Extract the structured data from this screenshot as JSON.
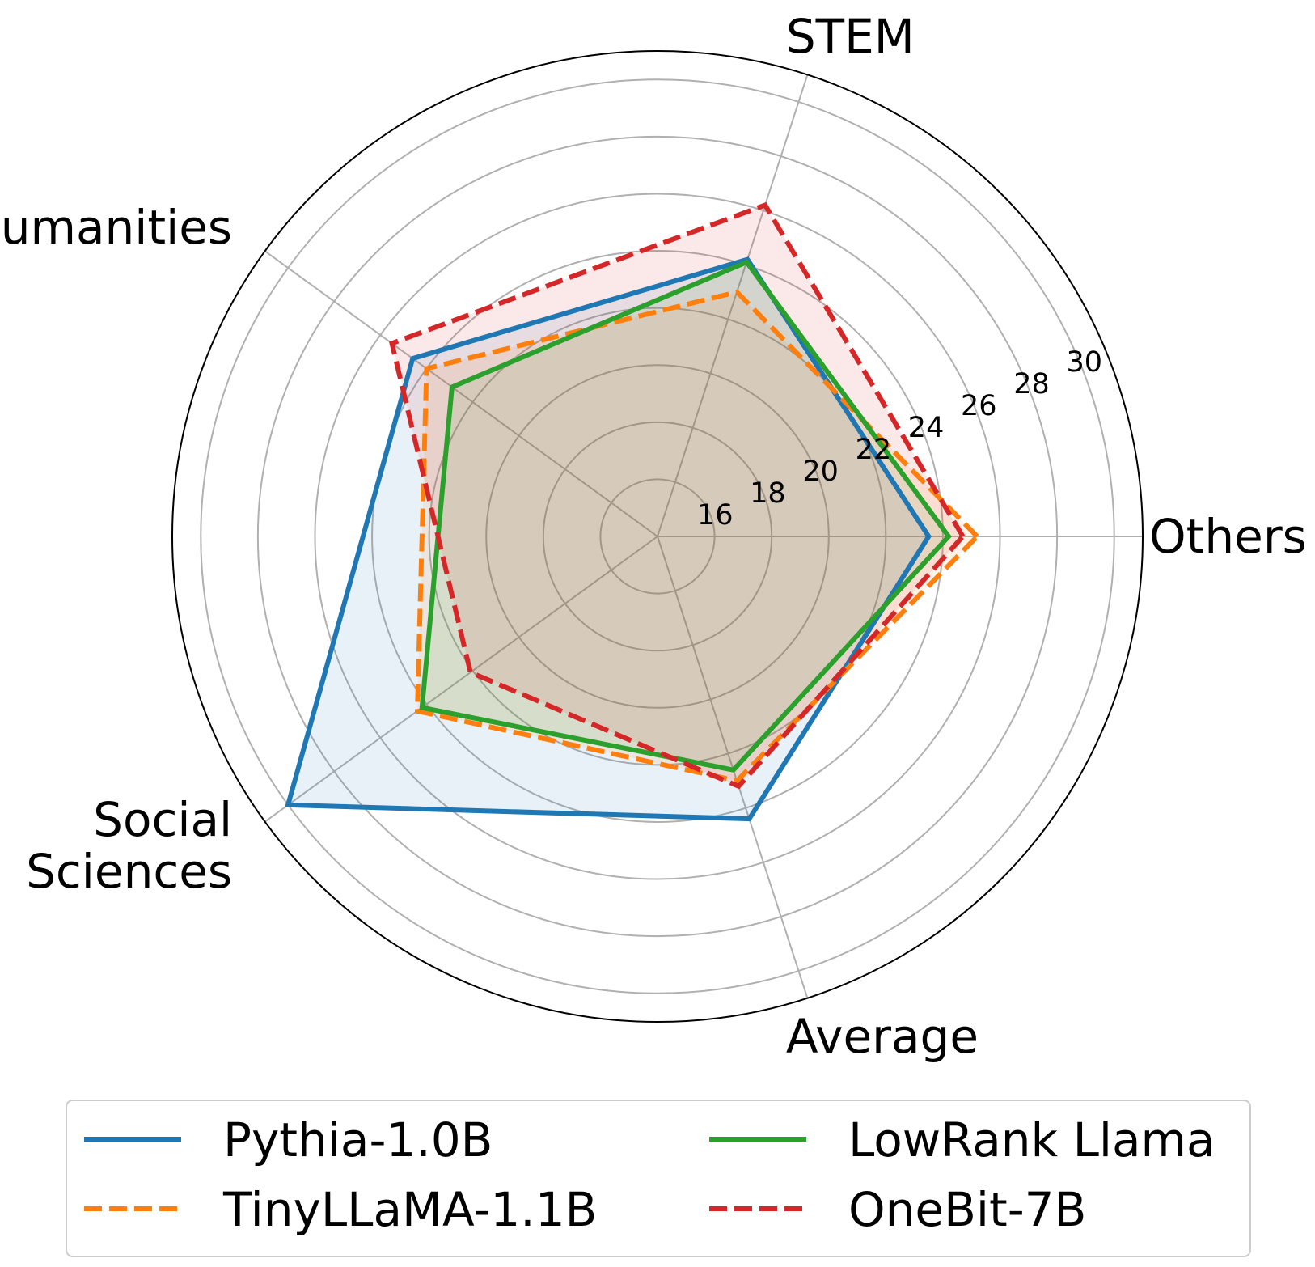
{
  "chart_data": {
    "type": "radar",
    "title": "",
    "categories": [
      "Others",
      "STEM",
      "Humanities",
      "Social\nSciences",
      "Average"
    ],
    "rlim": [
      14,
      31
    ],
    "rticks": [
      16,
      18,
      20,
      22,
      24,
      26,
      28,
      30
    ],
    "series": [
      {
        "name": "Pythia-1.0B",
        "values": [
          23.5,
          24.2,
          24.6,
          30.0,
          24.4
        ],
        "color": "#1f77b4",
        "dash": "solid"
      },
      {
        "name": "TinyLLaMA-1.1B",
        "values": [
          25.2,
          23.0,
          24.0,
          24.4,
          23.0
        ],
        "color": "#ff7f0e",
        "dash": "dashed"
      },
      {
        "name": "LowRank Llama",
        "values": [
          24.2,
          24.1,
          22.9,
          24.2,
          22.6
        ],
        "color": "#2ca02c",
        "dash": "solid"
      },
      {
        "name": "OneBit-7B",
        "values": [
          24.7,
          26.2,
          25.5,
          22.1,
          23.2
        ],
        "color": "#d62728",
        "dash": "dashed"
      }
    ],
    "grid": true,
    "legend_position": "bottom"
  }
}
